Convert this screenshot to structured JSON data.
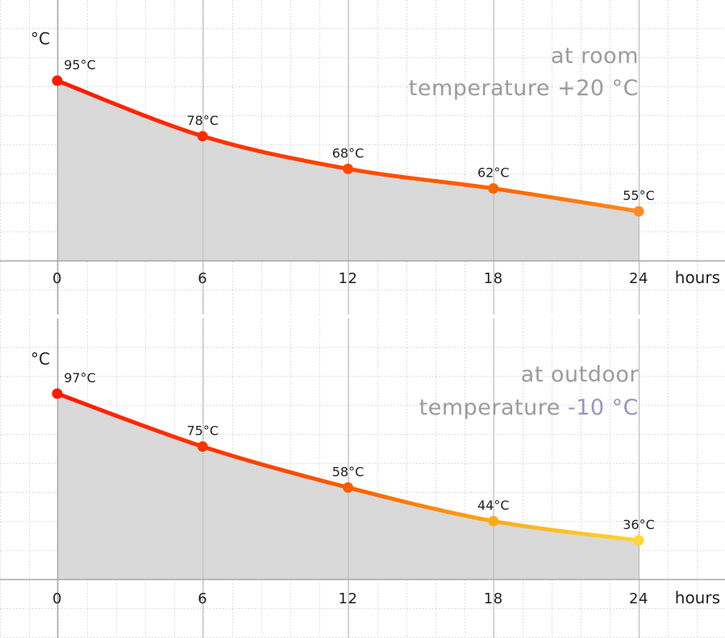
{
  "chart_data": [
    {
      "type": "area",
      "title_lines": [
        [
          {
            "text": "at room",
            "color": "#9b9b9b"
          }
        ],
        [
          {
            "text": "temperature ",
            "color": "#9b9b9b"
          },
          {
            "text": "+20 °C",
            "color": "#9b9b9b"
          }
        ]
      ],
      "ylabel": "°C",
      "xlabel": "hours",
      "x": [
        0,
        6,
        12,
        18,
        24
      ],
      "values": [
        95,
        78,
        68,
        62,
        55
      ],
      "labels": [
        "95°C",
        "78°C",
        "68°C",
        "62°C",
        "55°C"
      ],
      "xticks": [
        "0",
        "6",
        "12",
        "18",
        "24"
      ],
      "point_colors": [
        "#ff1a00",
        "#ff2d00",
        "#ff4700",
        "#ff6400",
        "#ff8a1e"
      ],
      "area_color": "#d9d9d9",
      "grid": true
    },
    {
      "type": "area",
      "title_lines": [
        [
          {
            "text": "at outdoor",
            "color": "#9b9b9b"
          }
        ],
        [
          {
            "text": "temperature ",
            "color": "#9b9b9b"
          },
          {
            "text": "-10 °C",
            "color": "#9a95bd"
          }
        ]
      ],
      "ylabel": "°C",
      "xlabel": "hours",
      "x": [
        0,
        6,
        12,
        18,
        24
      ],
      "values": [
        97,
        75,
        58,
        44,
        36
      ],
      "labels": [
        "97°C",
        "75°C",
        "58°C",
        "44°C",
        "36°C"
      ],
      "xticks": [
        "0",
        "6",
        "12",
        "18",
        "24"
      ],
      "point_colors": [
        "#ff1a00",
        "#ff3300",
        "#ff5a00",
        "#ffaa1a",
        "#ffd633"
      ],
      "area_color": "#d9d9d9",
      "grid": true
    }
  ]
}
